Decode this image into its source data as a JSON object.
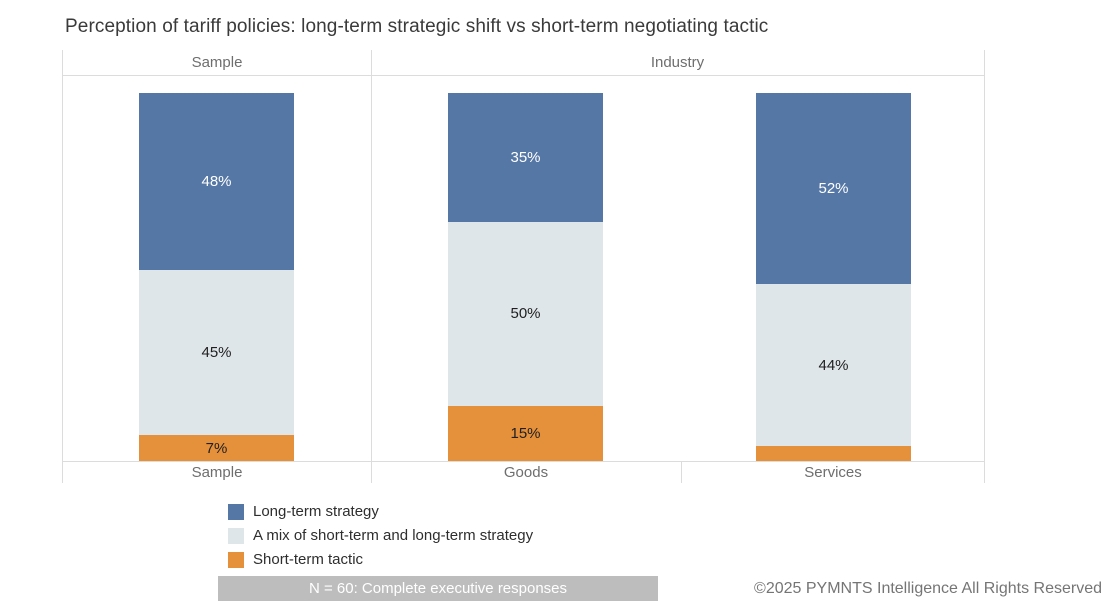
{
  "title": "Perception of tariff policies: long-term strategic shift vs short-term negotiating tactic",
  "chart_data": {
    "type": "bar",
    "stacked": true,
    "unit": "%",
    "ylim": [
      0,
      100
    ],
    "grid": false,
    "legend_position": "bottom-left",
    "panels": [
      {
        "label": "Sample",
        "categories": [
          "Sample"
        ]
      },
      {
        "label": "Industry",
        "categories": [
          "Goods",
          "Services"
        ]
      }
    ],
    "categories": [
      "Sample",
      "Goods",
      "Services"
    ],
    "series": [
      {
        "name": "Long-term strategy",
        "color": "#5577a5",
        "label_color": "#ffffff",
        "values": [
          48,
          35,
          52
        ]
      },
      {
        "name": "A mix of short-term and long-term strategy",
        "color": "#dfe6e9",
        "label_color": "#1f1f1f",
        "values": [
          45,
          50,
          44
        ]
      },
      {
        "name": "Short-term tactic",
        "color": "#e5913c",
        "label_color": "#1f1f1f",
        "values": [
          7,
          15,
          4
        ]
      }
    ],
    "value_labels": [
      [
        "48%",
        "45%",
        "7%"
      ],
      [
        "35%",
        "50%",
        "15%"
      ],
      [
        "52%",
        "44%",
        ""
      ]
    ]
  },
  "footer": {
    "note": "N = 60: Complete executive responses",
    "copyright": "©2025 PYMNTS Intelligence All Rights Reserved"
  }
}
